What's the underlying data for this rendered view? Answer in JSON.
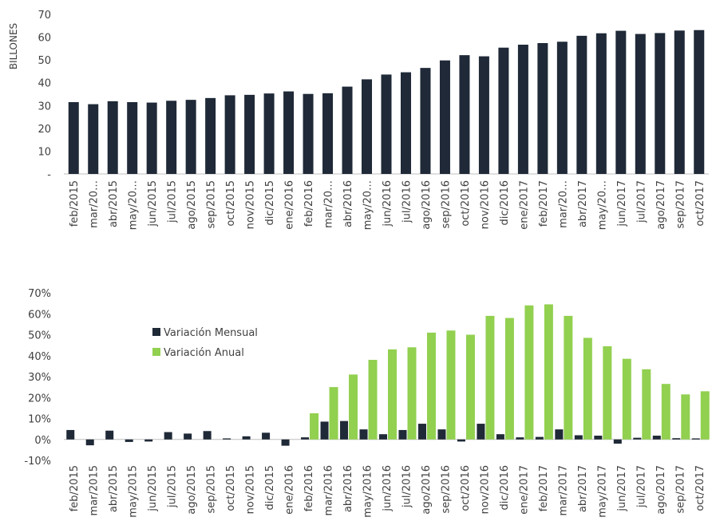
{
  "colors": {
    "dark": "#1f2937",
    "green": "#92d050",
    "text": "#404040"
  },
  "chart_data": [
    {
      "type": "bar",
      "ylabel": "BILLONES",
      "ylim": [
        0,
        70
      ],
      "yticks": [
        "-",
        "10",
        "20",
        "30",
        "40",
        "50",
        "60",
        "70"
      ],
      "categories": [
        "feb/2015",
        "mar/20…",
        "abr/2015",
        "may/20…",
        "jun/2015",
        "jul/2015",
        "ago/2015",
        "sep/2015",
        "oct/2015",
        "nov/2015",
        "dic/2015",
        "ene/2016",
        "feb/2016",
        "mar/20…",
        "abr/2016",
        "may/20…",
        "jun/2016",
        "jul/2016",
        "ago/2016",
        "sep/2016",
        "oct/2016",
        "nov/2016",
        "dic/2016",
        "ene/2017",
        "feb/2017",
        "mar/20…",
        "abr/2017",
        "may/20…",
        "jun/2017",
        "jul/2017",
        "ago/2017",
        "sep/2017",
        "oct/2017"
      ],
      "values": [
        31.5,
        30.6,
        31.9,
        31.5,
        31.3,
        32.1,
        32.5,
        33.3,
        34.5,
        34.7,
        35.3,
        36.2,
        35.1,
        35.4,
        38.3,
        41.5,
        43.6,
        44.6,
        46.5,
        49.8,
        52.1,
        51.6,
        55.4,
        56.7,
        57.4,
        58.0,
        60.6,
        61.7,
        62.8,
        61.4,
        61.8,
        62.9,
        63.1
      ]
    },
    {
      "type": "bar",
      "ylim": [
        -10,
        70
      ],
      "yticks": [
        "-10%",
        "0%",
        "10%",
        "20%",
        "30%",
        "40%",
        "50%",
        "60%",
        "70%"
      ],
      "categories": [
        "feb/2015",
        "mar/2015",
        "abr/2015",
        "may/2015",
        "jun/2015",
        "jul/2015",
        "ago/2015",
        "sep/2015",
        "oct/2015",
        "nov/2015",
        "dic/2015",
        "ene/2016",
        "feb/2016",
        "mar/2016",
        "abr/2016",
        "may/2016",
        "jun/2016",
        "jul/2016",
        "ago/2016",
        "sep/2016",
        "oct/2016",
        "nov/2016",
        "dic/2016",
        "ene/2017",
        "feb/2017",
        "mar/2017",
        "abr/2017",
        "may/2017",
        "jun/2017",
        "jul/2017",
        "ago/2017",
        "sep/2017",
        "oct/2017"
      ],
      "legend_position": "left",
      "series": [
        {
          "name": "Variación Mensual",
          "color": "#1f2937",
          "values": [
            4.5,
            -2.8,
            4.2,
            -1.2,
            -1.0,
            3.5,
            2.8,
            4.0,
            0.5,
            1.5,
            3.2,
            -3.0,
            1.0,
            8.5,
            8.8,
            4.8,
            2.5,
            4.5,
            7.5,
            4.8,
            -1.0,
            7.5,
            2.5,
            1.0,
            1.2,
            4.8,
            2.0,
            1.8,
            -2.0,
            0.8,
            1.8,
            0.6,
            0.5
          ]
        },
        {
          "name": "Variación Anual",
          "color": "#92d050",
          "values": [
            null,
            null,
            null,
            null,
            null,
            null,
            null,
            null,
            null,
            null,
            null,
            null,
            12.5,
            25.0,
            31.0,
            38.0,
            43.0,
            44.0,
            51.0,
            52.0,
            50.0,
            59.0,
            58.0,
            64.0,
            64.5,
            59.0,
            48.5,
            44.5,
            38.5,
            33.5,
            26.5,
            21.5,
            23.0
          ]
        }
      ]
    }
  ]
}
